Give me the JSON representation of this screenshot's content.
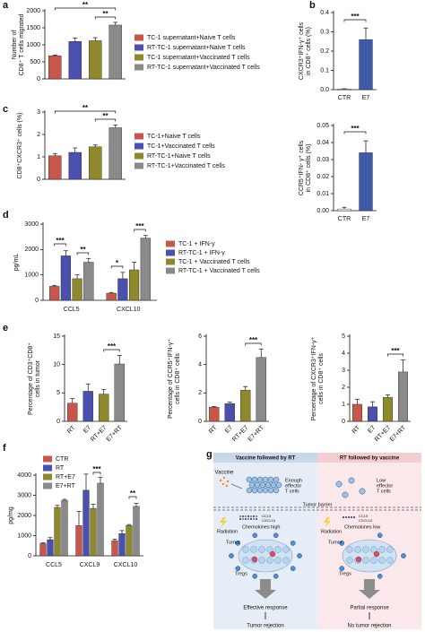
{
  "chart_data": [
    {
      "type": "bar",
      "panel": "a",
      "ylabel": [
        "Number of",
        "CD8⁺ T cells migrated"
      ],
      "categories": [
        "TC-1 supernatant+Naive T cells",
        "RT-TC-1 supernatant+Naive T cells",
        "TC-1 supernatant+Vaccinated T cells",
        "RT-TC-1 supernatant+Vaccinated T cells"
      ],
      "values": [
        680,
        1100,
        1120,
        1580
      ],
      "errors": [
        20,
        100,
        90,
        80
      ],
      "colors": [
        "#c8564b",
        "#4b4fae",
        "#8e8a2c",
        "#8a8a8a"
      ],
      "ylim": [
        0,
        2000
      ],
      "yticks": [
        0,
        500,
        1000,
        1500,
        2000
      ],
      "annotations": [
        "**",
        "**"
      ]
    },
    {
      "type": "bar",
      "panel": "b",
      "ylabel": [
        "CXCR3⁺IFN-γ⁺ cells",
        "in CD8⁺ cells (%)"
      ],
      "categories": [
        "CTR",
        "E7"
      ],
      "values": [
        0.003,
        0.26
      ],
      "errors": [
        0.002,
        0.06
      ],
      "colors": [
        "#ffffff",
        "#3f5aa8"
      ],
      "ylim": [
        0,
        0.4
      ],
      "yticks": [
        {
          "value": 0,
          "label": "0.0"
        },
        0.1,
        0.2,
        0.3,
        0.4
      ],
      "annotations": [
        "***"
      ]
    },
    {
      "type": "bar",
      "panel": "c",
      "ylabel": [
        "CD8⁺CXCR3⁺ cells (%)"
      ],
      "categories": [
        "TC-1+Naive T cells",
        "TC-1+Vaccinated T cells",
        "RT-TC-1+Naive T cells",
        "RT-TC-1+Vaccinated T cells"
      ],
      "values": [
        1.05,
        1.2,
        1.45,
        2.3
      ],
      "errors": [
        0.1,
        0.2,
        0.08,
        0.12
      ],
      "colors": [
        "#c8564b",
        "#4b4fae",
        "#8e8a2c",
        "#8a8a8a"
      ],
      "ylim": [
        0,
        3
      ],
      "yticks": [
        0,
        1,
        2,
        3
      ],
      "annotations": [
        "**",
        "**"
      ]
    },
    {
      "type": "bar",
      "ylabel": [
        "CCR5⁺IFN- γ⁺ cells",
        "in CD8⁺ cells (%)"
      ],
      "categories": [
        "CTR",
        "E7"
      ],
      "values": [
        0.001,
        0.034
      ],
      "errors": [
        0.001,
        0.007
      ],
      "colors": [
        "#ffffff",
        "#3f5aa8"
      ],
      "ylim": [
        0,
        0.05
      ],
      "yticks": [
        {
          "value": 0,
          "label": "0.00"
        },
        {
          "value": 0.01,
          "label": "0.01"
        },
        {
          "value": 0.02,
          "label": "0.02"
        },
        {
          "value": 0.03,
          "label": "0.03"
        },
        {
          "value": 0.04,
          "label": "0.04"
        },
        {
          "value": 0.05,
          "label": "0.05"
        }
      ],
      "annotations": [
        "***"
      ]
    },
    {
      "type": "bar",
      "panel": "d",
      "ylabel": [
        "pg/mL"
      ],
      "categories": [
        "CCL5",
        "CXCL10"
      ],
      "series": [
        {
          "name": "TC-1 + IFN-γ",
          "color": "#c8564b",
          "values": [
            550,
            280
          ],
          "errors": [
            40,
            30
          ]
        },
        {
          "name": "RT-TC-1 + IFN-γ",
          "color": "#4b4fae",
          "values": [
            1750,
            850
          ],
          "errors": [
            200,
            250
          ]
        },
        {
          "name": "TC-1 + Vaccinated T cells",
          "color": "#8e8a2c",
          "values": [
            850,
            1200
          ],
          "errors": [
            150,
            300
          ]
        },
        {
          "name": "RT-TC-1 + Vaccinated T cells",
          "color": "#8a8a8a",
          "values": [
            1500,
            2450
          ],
          "errors": [
            150,
            100
          ]
        }
      ],
      "ylim": [
        0,
        3000
      ],
      "yticks": [
        0,
        1000,
        2000,
        3000
      ],
      "annotations": [
        "***",
        "**",
        "*",
        "***"
      ]
    },
    {
      "type": "bar",
      "panel": "e",
      "ylabel": [
        "Percentage of CD3⁺CD8⁺",
        "cells in tumor"
      ],
      "categories": [
        "RT",
        "E7",
        "RT+E7",
        "E7+RT"
      ],
      "values": [
        3.2,
        5.3,
        4.8,
        10.1
      ],
      "errors": [
        0.8,
        1.3,
        0.8,
        1.5
      ],
      "colors": [
        "#c8564b",
        "#4b4fae",
        "#8e8a2c",
        "#8a8a8a"
      ],
      "ylim": [
        0,
        15
      ],
      "yticks": [
        0,
        5,
        10,
        15
      ],
      "annotations": [
        "***"
      ]
    },
    {
      "type": "bar",
      "ylabel": [
        "Percentage of CCR5⁺IFN-γ⁺",
        "cells in CD8⁺ cells"
      ],
      "categories": [
        "RT",
        "E7",
        "RT+E7",
        "E7+RT"
      ],
      "values": [
        1.0,
        1.25,
        2.2,
        4.5
      ],
      "errors": [
        0.05,
        0.1,
        0.25,
        0.6
      ],
      "colors": [
        "#c8564b",
        "#4b4fae",
        "#8e8a2c",
        "#8a8a8a"
      ],
      "ylim": [
        0,
        6
      ],
      "yticks": [
        0,
        2,
        4,
        6
      ],
      "annotations": [
        "***"
      ]
    },
    {
      "type": "bar",
      "ylabel": [
        "Percentage of CXCR3⁺IFN-γ⁺",
        "cells in CD8⁺ cells"
      ],
      "categories": [
        "RT",
        "E7",
        "RT+E7",
        "E7+RT"
      ],
      "values": [
        1.0,
        0.85,
        1.4,
        2.9
      ],
      "errors": [
        0.3,
        0.3,
        0.15,
        0.7
      ],
      "colors": [
        "#c8564b",
        "#4b4fae",
        "#8e8a2c",
        "#8a8a8a"
      ],
      "ylim": [
        0,
        5
      ],
      "yticks": [
        0,
        1,
        2,
        3,
        4,
        5
      ],
      "annotations": [
        "***"
      ]
    },
    {
      "type": "bar",
      "panel": "f",
      "ylabel": [
        "pg/mg"
      ],
      "categories": [
        "CCL5",
        "CXCL9",
        "CXCL10"
      ],
      "series": [
        {
          "name": "CTR",
          "color": "#c8564b",
          "values": [
            600,
            1500,
            750
          ],
          "errors": [
            50,
            700,
            80
          ]
        },
        {
          "name": "RT",
          "color": "#4b4fae",
          "values": [
            800,
            3250,
            1100
          ],
          "errors": [
            100,
            800,
            150
          ]
        },
        {
          "name": "RT+E7",
          "color": "#8e8a2c",
          "values": [
            2400,
            2350,
            1500
          ],
          "errors": [
            100,
            200,
            50
          ]
        },
        {
          "name": "E7+RT",
          "color": "#8a8a8a",
          "values": [
            2750,
            3600,
            2450
          ],
          "errors": [
            50,
            300,
            150
          ]
        }
      ],
      "ylim": [
        0,
        4000
      ],
      "yticks": [
        0,
        1000,
        2000,
        3000,
        4000
      ],
      "annotations": [
        "***",
        "**"
      ]
    }
  ],
  "diagram": {
    "panel": "g",
    "barrier": "Tumor barrier",
    "left": {
      "title": "Vaccine followed by RT",
      "vaccine": "Vaccine",
      "tcells": [
        "Enough",
        "effector",
        "T cells"
      ],
      "radiation": "Radiation",
      "chemokines": "Chemokines high",
      "ccl5": "CCL5",
      "cxcl10": "CXCL10",
      "tumor": "Tumor",
      "tregs": "Tregs",
      "response": "Effective response",
      "outcome": "Tumor rejection"
    },
    "right": {
      "title": "RT followed by vaccine",
      "tcells": [
        "Low",
        "effector",
        "T cells"
      ],
      "radiation": "Radiation",
      "chemokines": "Chemokines low",
      "ccl5": "CCL5",
      "cxcl10": "CXCL10",
      "tumor": "Tumor",
      "tregs": "Tregs",
      "response": "Partial response",
      "outcome": "No tumor rejection"
    }
  }
}
